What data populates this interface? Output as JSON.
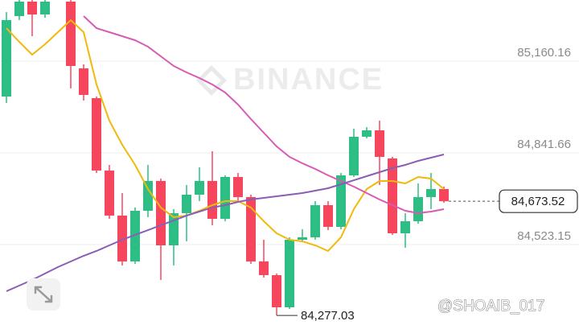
{
  "chart_data": {
    "type": "candlestick",
    "watermark": "BINANCE",
    "credit": "@SHOAIB_017",
    "ylim": [
      84243.75,
      85372.5
    ],
    "yticks": [
      {
        "value": 85160.16,
        "label": "85,160.16"
      },
      {
        "value": 84841.66,
        "label": "84,841.66"
      },
      {
        "value": 84523.15,
        "label": "84,523.15"
      }
    ],
    "grid": true,
    "up_color": "#2ebd85",
    "down_color": "#f6465d",
    "last_price": {
      "value": 84673.52,
      "label": "84,673.52"
    },
    "low_annotation": {
      "value": 84277.03,
      "label": "84,277.03"
    },
    "open": [
      85037.2,
      85316.6,
      85366.9,
      85322.2,
      null,
      85366.9,
      85135.0,
      85031.6,
      84780.2,
      84623.7,
      84464.5,
      84640.5,
      84743.9,
      84520.3,
      84632.1,
      84696.4,
      84743.9,
      84612.5,
      84757.8,
      84688.0,
      84464.5,
      84416.9,
      84305.2,
      84539.9,
      84548.3,
      84660.0,
      84584.6,
      84763.4,
      84897.5,
      84919.9,
      84822.1,
      84562.3,
      84604.2,
      84688.0,
      84715.9
    ],
    "high": [
      85330.6,
      85372.5,
      85372.5,
      85372.5,
      null,
      85372.5,
      85149.0,
      85037.2,
      84799.7,
      84701.9,
      84651.6,
      84799.7,
      84752.2,
      84646.1,
      84729.9,
      84791.4,
      84847.2,
      84763.4,
      84771.8,
      84696.4,
      84539.9,
      84422.5,
      84548.3,
      84576.3,
      84674.0,
      84674.0,
      84771.8,
      84925.5,
      84931.0,
      84953.4,
      84827.7,
      84632.1,
      84735.5,
      84771.8,
      84724.3
    ],
    "low": [
      85014.9,
      85302.7,
      85246.8,
      85311.0,
      null,
      85065.2,
      85023.3,
      84771.8,
      84612.5,
      84450.5,
      84456.1,
      84618.1,
      84400.2,
      84450.5,
      84534.3,
      84674.0,
      84590.2,
      84604.2,
      84674.0,
      84456.1,
      84408.6,
      84277.03,
      84299.6,
      84534.3,
      84539.9,
      84573.4,
      84576.3,
      84757.8,
      84891.9,
      84729.9,
      84556.6,
      84511.9,
      84595.8,
      84646.1,
      84668.4
    ],
    "close": [
      85302.7,
      85366.9,
      85322.2,
      85366.9,
      null,
      85143.4,
      85042.8,
      84780.2,
      84623.7,
      84464.5,
      84640.5,
      84743.9,
      84520.3,
      84632.1,
      84696.4,
      84743.9,
      84612.5,
      84757.8,
      84688.0,
      84464.5,
      84416.9,
      84305.2,
      84539.9,
      84548.3,
      84660.0,
      84584.6,
      84763.4,
      84897.5,
      84919.9,
      84827.7,
      84562.3,
      84604.2,
      84688.0,
      84715.9,
      84673.52
    ],
    "series": [
      {
        "color": "#f0b90b",
        "values": [
          85274.7,
          85227.2,
          85182.5,
          85218.8,
          85260.7,
          85302.7,
          85260.7,
          85079.1,
          84953.4,
          84869.6,
          84799.7,
          84715.9,
          84651.6,
          84618.1,
          84623.7,
          84640.5,
          84660.0,
          84674.0,
          84674.0,
          84651.6,
          84604.2,
          84562.3,
          84539.9,
          84534.3,
          84520.3,
          84500.8,
          84548.3,
          84646.1,
          84715.9,
          84743.9,
          84743.9,
          84735.5,
          84757.8,
          84752.2,
          84715.9
        ]
      },
      {
        "color": "#d75ab5",
        "values": [
          null,
          null,
          null,
          null,
          null,
          null,
          85316.6,
          85274.7,
          85260.7,
          85246.8,
          85232.8,
          85210.4,
          85176.9,
          85143.4,
          85121.0,
          85101.5,
          85079.1,
          85051.2,
          85009.3,
          84959.0,
          84911.5,
          84864.0,
          84827.7,
          84805.3,
          84785.8,
          84763.4,
          84743.9,
          84724.3,
          84701.9,
          84679.6,
          84660.0,
          84640.5,
          84632.1,
          84637.7,
          84646.1
        ]
      },
      {
        "color": "#8a5db6",
        "values": [
          84361.1,
          84380.6,
          84400.2,
          84422.5,
          84444.9,
          84464.5,
          84484.0,
          84500.8,
          84520.3,
          84539.9,
          84556.7,
          84573.4,
          84590.2,
          84606.9,
          84623.7,
          84637.7,
          84651.6,
          84660.0,
          84671.2,
          84679.6,
          84685.2,
          84690.8,
          84696.4,
          84701.9,
          84710.3,
          84718.7,
          84732.7,
          84746.6,
          84760.6,
          84774.6,
          84788.6,
          84799.7,
          84813.7,
          84824.9,
          84836.1
        ]
      }
    ]
  }
}
